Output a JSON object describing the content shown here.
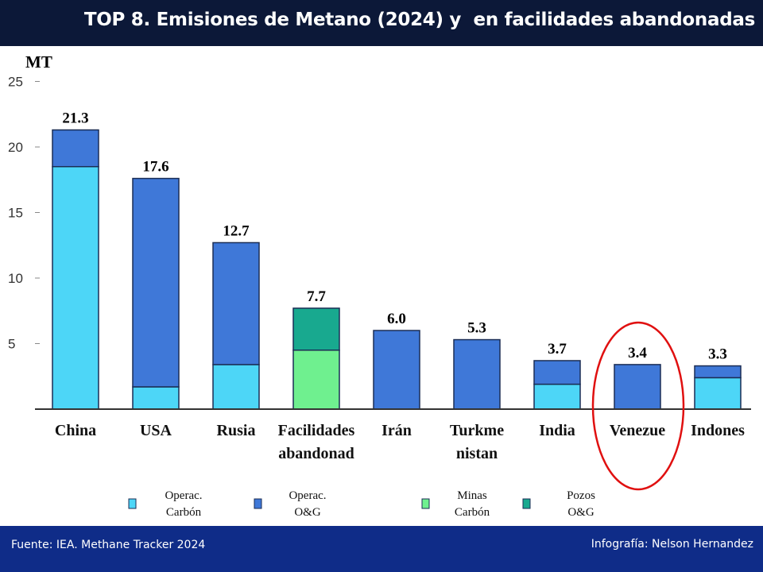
{
  "header": {
    "title": "TOP 8. Emisiones de Metano (2024) y  en facilidades abandonadas"
  },
  "footer": {
    "source": "Fuente:  IEA. Methane Tracker 2024",
    "credit": "Infografía: Nelson Hernandez"
  },
  "colors": {
    "header_bg": "#0c1838",
    "footer_bg": "#0f2c88",
    "highlight": "#e01010"
  },
  "highlight_category": "Venezue",
  "chart_data": {
    "type": "bar",
    "stacked": true,
    "title": "TOP 8. Emisiones de Metano (2024) y  en facilidades abandonadas",
    "ylabel": "MT",
    "ylim": [
      0,
      25
    ],
    "yticks": [
      5,
      10,
      15,
      20,
      25
    ],
    "categories": [
      [
        "China"
      ],
      [
        "USA"
      ],
      [
        "Rusia"
      ],
      [
        "Facilidades",
        "abandonad"
      ],
      [
        "Irán"
      ],
      [
        "Turkme",
        "nistan"
      ],
      [
        "India"
      ],
      [
        "Venezue"
      ],
      [
        "Indones"
      ]
    ],
    "totals": [
      "21.3",
      "17.6",
      "12.7",
      "7.7",
      "6.0",
      "5.3",
      "3.7",
      "3.4",
      "3.3"
    ],
    "series": [
      {
        "name": [
          "Operac.",
          "Carbón"
        ],
        "color": "#4dd6f7",
        "values": [
          18.5,
          1.7,
          3.4,
          0,
          0,
          0,
          1.9,
          0,
          2.4
        ]
      },
      {
        "name": [
          "Operac.",
          "O&G"
        ],
        "color": "#3f78d8",
        "values": [
          2.8,
          15.9,
          9.3,
          0,
          6.0,
          5.3,
          1.8,
          3.4,
          0.9
        ]
      },
      {
        "name": [
          "Minas",
          "Carbón"
        ],
        "color": "#6ff08f",
        "values": [
          0,
          0,
          0,
          4.5,
          0,
          0,
          0,
          0,
          0
        ]
      },
      {
        "name": [
          "Pozos",
          "O&G"
        ],
        "color": "#18a98f",
        "values": [
          0,
          0,
          0,
          3.2,
          0,
          0,
          0,
          0,
          0
        ]
      }
    ],
    "grid": false,
    "legend": "bottom"
  }
}
